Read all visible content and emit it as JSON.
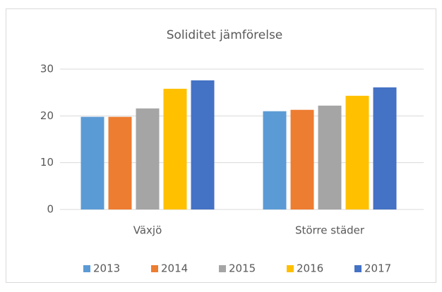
{
  "chart_data": {
    "type": "bar",
    "title": "Soliditet jämförelse",
    "categories": [
      "Växjö",
      "Större städer"
    ],
    "series": [
      {
        "name": "2013",
        "color": "#5b9bd5",
        "values": [
          19.8,
          21.0
        ]
      },
      {
        "name": "2014",
        "color": "#ed7d31",
        "values": [
          19.8,
          21.3
        ]
      },
      {
        "name": "2015",
        "color": "#a5a5a5",
        "values": [
          21.6,
          22.2
        ]
      },
      {
        "name": "2016",
        "color": "#ffc000",
        "values": [
          25.8,
          24.3
        ]
      },
      {
        "name": "2017",
        "color": "#4472c4",
        "values": [
          27.6,
          26.1
        ]
      }
    ],
    "ylim": [
      0,
      30
    ],
    "yticks": [
      0,
      10,
      20,
      30
    ],
    "grid": true,
    "legend": "bottom"
  }
}
